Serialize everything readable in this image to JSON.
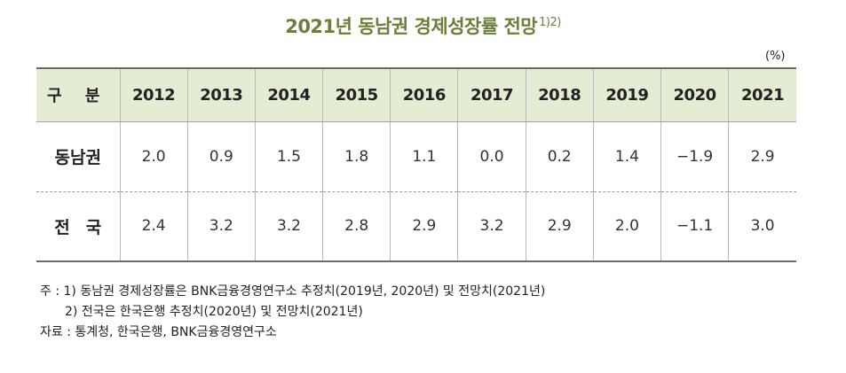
{
  "title": {
    "text": "2021년 동남권 경제성장률 전망",
    "superscript": "1)2)"
  },
  "unit": "(%)",
  "table": {
    "header_label": "구 분",
    "years": [
      "2012",
      "2013",
      "2014",
      "2015",
      "2016",
      "2017",
      "2018",
      "2019",
      "2020",
      "2021"
    ],
    "rows": [
      {
        "label": "동남권",
        "values": [
          "2.0",
          "0.9",
          "1.5",
          "1.8",
          "1.1",
          "0.0",
          "0.2",
          "1.4",
          "−1.9",
          "2.9"
        ]
      },
      {
        "label": "전국",
        "values": [
          "2.4",
          "3.2",
          "3.2",
          "2.8",
          "2.9",
          "3.2",
          "2.9",
          "2.0",
          "−1.1",
          "3.0"
        ]
      }
    ]
  },
  "notes": {
    "note1": "주 : 1) 동남권 경제성장률은 BNK금융경영연구소 추정치(2019년, 2020년) 및 전망치(2021년)",
    "note2": "2) 전국은 한국은행 추정치(2020년) 및 전망치(2021년)",
    "source": "자료 : 통계청, 한국은행, BNK금융경영연구소"
  },
  "colors": {
    "title": "#6b7f3a",
    "header_background": "#e4ecd4"
  }
}
